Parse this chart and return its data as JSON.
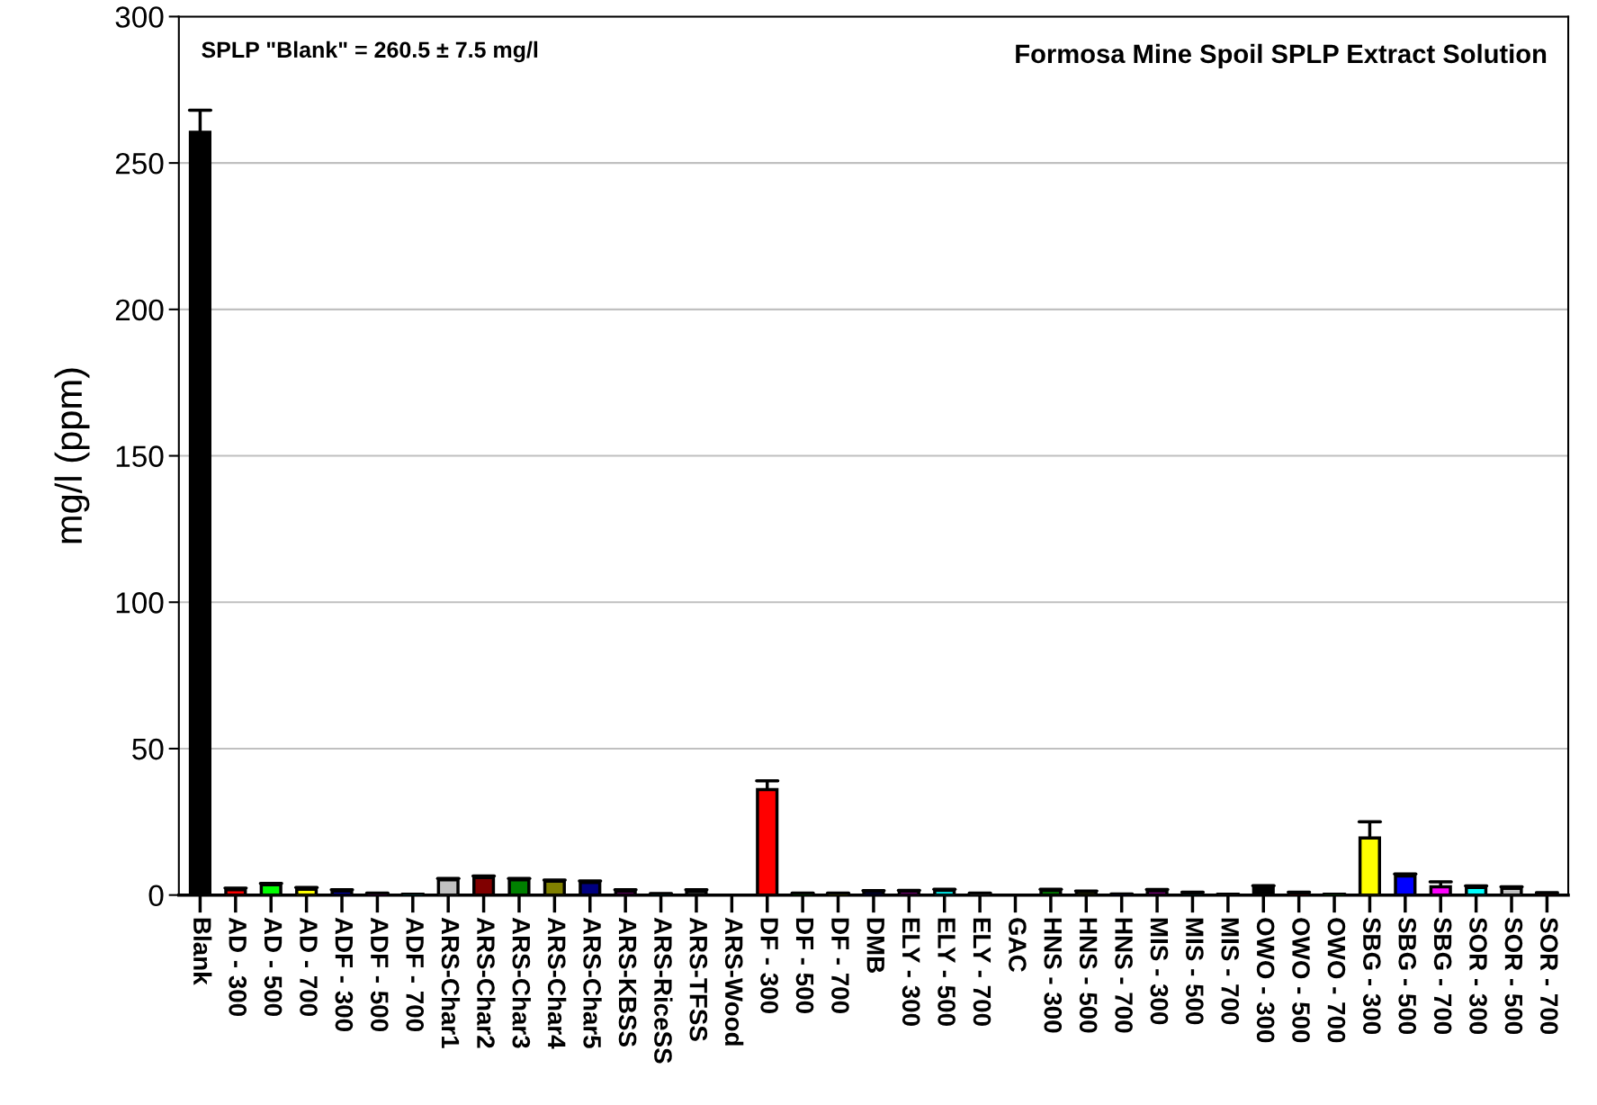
{
  "chart_data": {
    "type": "bar",
    "title": "Formosa Mine Spoil SPLP Extract Solution",
    "ylabel": "mg/l (ppm)",
    "annotations": [
      "SPLP \"Blank\" = 260.5 ± 7.5 mg/l"
    ],
    "categories": [
      "Blank",
      "AD - 300",
      "AD - 500",
      "AD - 700",
      "ADF - 300",
      "ADF - 500",
      "ADF - 700",
      "ARS-Char1",
      "ARS-Char2",
      "ARS-Char3",
      "ARS-Char4",
      "ARS-Char5",
      "ARS-KBSS",
      "ARS-RiceSS",
      "ARS-TFSS",
      "ARS-Wood",
      "DF - 300",
      "DF - 500",
      "DF - 700",
      "DMB",
      "ELY - 300",
      "ELY - 500",
      "ELY - 700",
      "GAC",
      "HNS - 300",
      "HNS - 500",
      "HNS - 700",
      "MIS - 300",
      "MIS - 500",
      "MIS - 700",
      "OWO - 300",
      "OWO - 500",
      "OWO - 700",
      "SBG - 300",
      "SBG - 500",
      "SBG - 700",
      "SOR - 300",
      "SOR - 500",
      "SOR - 700"
    ],
    "values": [
      260.5,
      1.8,
      3.5,
      2,
      1.3,
      0.5,
      0.2,
      5.2,
      6,
      5.2,
      4.7,
      4.3,
      1.3,
      0.3,
      1.3,
      0,
      36,
      0.5,
      0.5,
      1.1,
      1.2,
      1.6,
      0.5,
      0,
      1.6,
      1.1,
      0.3,
      1.4,
      0.8,
      0.2,
      2.8,
      0.8,
      0.2,
      19.5,
      6.5,
      2.8,
      2.6,
      2.3,
      0.6
    ],
    "errors": [
      [
        260.5,
        268
      ],
      [
        1.8,
        2.4
      ],
      [
        3.5,
        4
      ],
      [
        2,
        2.6
      ],
      [
        1.3,
        1.8
      ],
      [
        0.5,
        0.7
      ],
      [
        0.2,
        0.3
      ],
      [
        5.2,
        5.7
      ],
      [
        6,
        6.5
      ],
      [
        5.2,
        5.7
      ],
      [
        4.7,
        5.1
      ],
      [
        4.3,
        4.8
      ],
      [
        1.3,
        1.8
      ],
      [
        0.3,
        0.5
      ],
      [
        1.3,
        1.8
      ],
      null,
      [
        36,
        39
      ],
      [
        0.5,
        0.7
      ],
      [
        0.5,
        0.7
      ],
      [
        1.1,
        1.5
      ],
      [
        1.2,
        1.6
      ],
      [
        1.6,
        2
      ],
      [
        0.5,
        0.7
      ],
      null,
      [
        1.6,
        2
      ],
      [
        1.1,
        1.4
      ],
      [
        0.3,
        0.4
      ],
      [
        1.4,
        1.9
      ],
      [
        0.8,
        1
      ],
      [
        0.2,
        0.3
      ],
      [
        2.8,
        3.2
      ],
      [
        0.8,
        1
      ],
      [
        0.2,
        0.3
      ],
      [
        19.5,
        25
      ],
      [
        6.5,
        7.2
      ],
      [
        2.8,
        4.5
      ],
      [
        2.6,
        3.1
      ],
      [
        2.3,
        2.8
      ],
      [
        0.6,
        0.8
      ]
    ],
    "colors": [
      "#000000",
      "#ff0000",
      "#00ff00",
      "#ffff00",
      "#0000ff",
      "#ff00ff",
      "#00ffff",
      "#c0c0c0",
      "#800000",
      "#008000",
      "#808000",
      "#000080",
      "#800080",
      "#008080",
      "#404040",
      "#000000",
      "#ff0000",
      "#00ff00",
      "#ffff00",
      "#0000ff",
      "#ff00ff",
      "#00ffff",
      "#c0c0c0",
      "#000000",
      "#008000",
      "#808000",
      "#000080",
      "#800080",
      "#008080",
      "#404040",
      "#000000",
      "#ff0000",
      "#00ff00",
      "#ffff00",
      "#0000ff",
      "#ff00ff",
      "#00ffff",
      "#c0c0c0",
      "#800000"
    ],
    "ylim": [
      0,
      300
    ],
    "yticks": [
      0,
      50,
      100,
      150,
      200,
      250,
      300
    ],
    "grid": "y"
  }
}
